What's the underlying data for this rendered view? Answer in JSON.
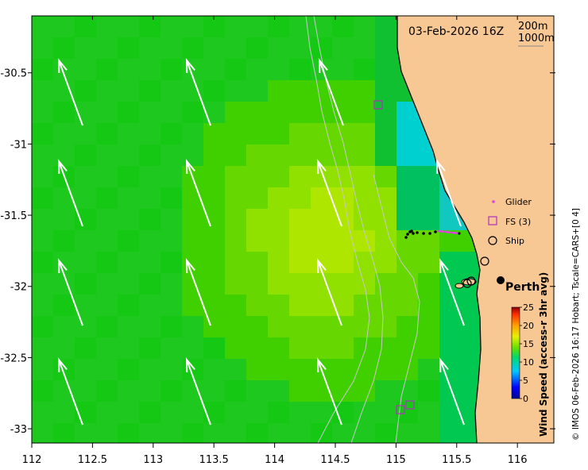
{
  "map": {
    "date_label": "03-Feb-2026 16Z",
    "isobath_labels": [
      "200m",
      "1000m"
    ],
    "city_label": "Perth",
    "credit": "© IMOS 06-Feb-2026 16:17 Hobart; Tscale=CARS+[0 4]",
    "x_ticks": [
      "112",
      "112.5",
      "113",
      "113.5",
      "114",
      "114.5",
      "115",
      "115.5",
      "116"
    ],
    "y_ticks": [
      "-30.5",
      "-31",
      "-31.5",
      "-32",
      "-32.5",
      "-33"
    ],
    "lon_range": [
      112,
      116.3
    ],
    "lat_range": [
      -33.1,
      -30.1
    ]
  },
  "legend": {
    "items": [
      {
        "label": "Glider",
        "symbol": "dot",
        "color": "#e040e0"
      },
      {
        "label": "FS (3)",
        "symbol": "square",
        "color": "#b030c0"
      },
      {
        "label": "Ship",
        "symbol": "circle",
        "color": "#000000"
      }
    ]
  },
  "colorbar": {
    "title": "Wind Speed (access-r 3hr avg)",
    "ticks": [
      "25",
      "20",
      "15",
      "10",
      "5",
      "0"
    ],
    "range": [
      0,
      25
    ]
  },
  "colors": {
    "land": "#f8c894",
    "arrow": "#ffffff",
    "isobath": "#c8c8c8"
  }
}
